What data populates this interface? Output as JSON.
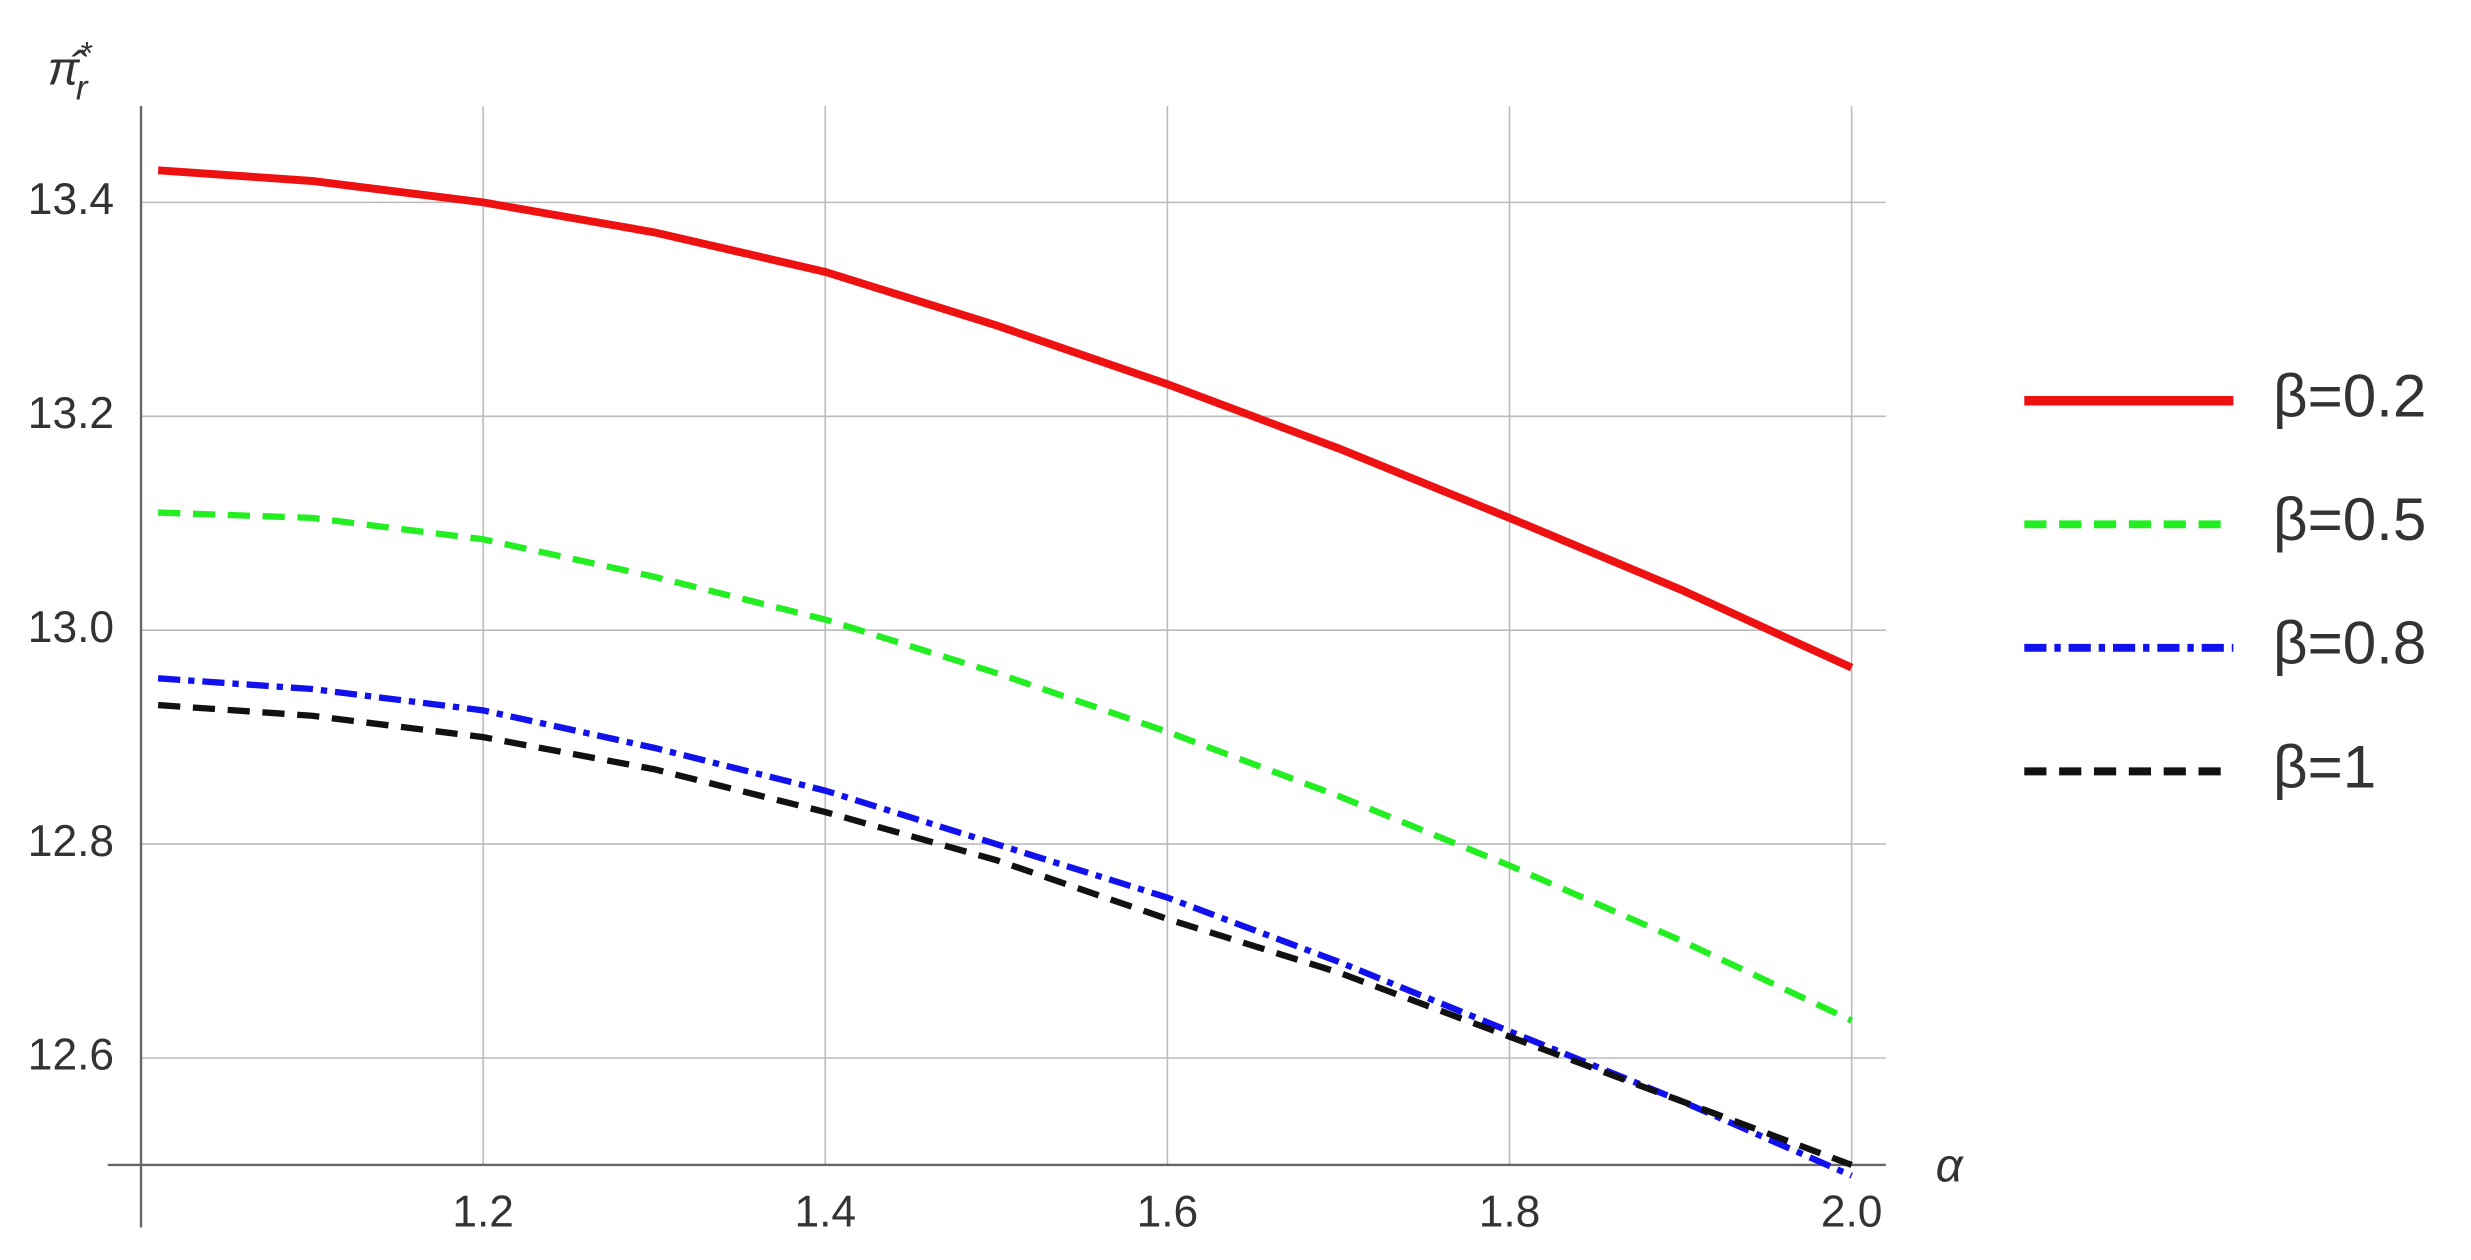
{
  "chart_data": {
    "type": "line",
    "y_label": {
      "base": "π̂",
      "sup": "*",
      "sub": "r"
    },
    "x_label": "α",
    "x": [
      1.01,
      1.1,
      1.2,
      1.3,
      1.4,
      1.5,
      1.6,
      1.7,
      1.8,
      1.9,
      2.0
    ],
    "series": [
      {
        "name": "β=0.2",
        "color": "#ee1111",
        "dash": "solid",
        "values": [
          13.43,
          13.42,
          13.4,
          13.372,
          13.335,
          13.285,
          13.23,
          13.17,
          13.105,
          13.038,
          12.965
        ]
      },
      {
        "name": "β=0.5",
        "color": "#22ee22",
        "dash": "dashed",
        "values": [
          13.11,
          13.105,
          13.085,
          13.05,
          13.01,
          12.96,
          12.905,
          12.845,
          12.78,
          12.71,
          12.635
        ]
      },
      {
        "name": "β=0.8",
        "color": "#1111ee",
        "dash": "dashdot",
        "values": [
          12.955,
          12.945,
          12.925,
          12.89,
          12.85,
          12.8,
          12.75,
          12.69,
          12.625,
          12.56,
          12.49
        ]
      },
      {
        "name": "β=1",
        "color": "#111111",
        "dash": "dashed",
        "values": [
          12.93,
          12.92,
          12.9,
          12.87,
          12.83,
          12.785,
          12.73,
          12.68,
          12.62,
          12.56,
          12.5
        ]
      }
    ],
    "xlim": [
      1.0,
      2.02
    ],
    "ylim": [
      12.5,
      13.49
    ],
    "xticks": [
      {
        "value": 1.2,
        "label": "1.2"
      },
      {
        "value": 1.4,
        "label": "1.4"
      },
      {
        "value": 1.6,
        "label": "1.6"
      },
      {
        "value": 1.8,
        "label": "1.8"
      },
      {
        "value": 2.0,
        "label": "2.0"
      }
    ],
    "yticks": [
      12.6,
      12.8,
      {
        "value": 13.0,
        "label": "13.0"
      },
      13.2,
      13.4
    ],
    "grid": true,
    "legend": "right"
  }
}
